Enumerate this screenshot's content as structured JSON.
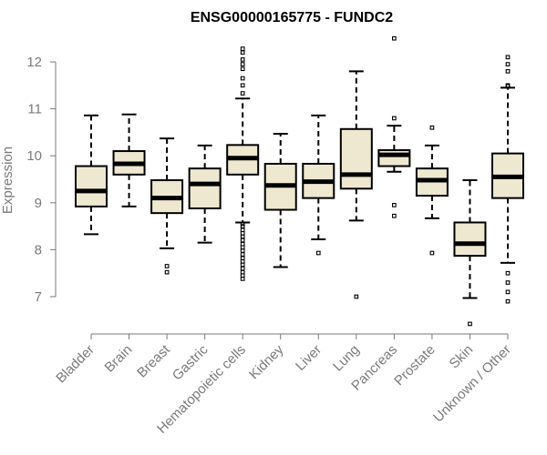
{
  "chart_data": {
    "type": "box",
    "title": "ENSG00000165775 - FUNDC2",
    "ylabel": "Expression",
    "xlabel": "",
    "ylim": [
      6.2,
      12.6
    ],
    "yticks": [
      7,
      8,
      9,
      10,
      11,
      12
    ],
    "colors": {
      "box_fill": "#eee8d0",
      "stroke": "#000000",
      "axis": "#7a7a7a"
    },
    "categories": [
      "Bladder",
      "Brain",
      "Breast",
      "Gastric",
      "Hematopoietic cells",
      "Kidney",
      "Liver",
      "Lung",
      "Pancreas",
      "Prostate",
      "Skin",
      "Unknown / Other"
    ],
    "boxes": [
      {
        "category": "Bladder",
        "whisker_low": 8.33,
        "q1": 8.92,
        "median": 9.25,
        "q3": 9.78,
        "whisker_high": 10.86,
        "outliers": []
      },
      {
        "category": "Brain",
        "whisker_low": 8.92,
        "q1": 9.6,
        "median": 9.83,
        "q3": 10.1,
        "whisker_high": 10.88,
        "outliers": []
      },
      {
        "category": "Breast",
        "whisker_low": 8.03,
        "q1": 8.78,
        "median": 9.1,
        "q3": 9.48,
        "whisker_high": 10.37,
        "outliers": [
          7.52,
          7.65
        ]
      },
      {
        "category": "Gastric",
        "whisker_low": 8.15,
        "q1": 8.88,
        "median": 9.4,
        "q3": 9.73,
        "whisker_high": 10.22,
        "outliers": []
      },
      {
        "category": "Hematopoietic cells",
        "whisker_low": 8.58,
        "q1": 9.6,
        "median": 9.95,
        "q3": 10.23,
        "whisker_high": 11.22,
        "outliers": [
          12.28,
          12.2,
          12.05,
          11.95,
          11.85,
          11.65,
          11.5,
          11.33,
          8.55,
          8.5,
          8.42,
          8.35,
          8.28,
          8.2,
          8.12,
          8.05,
          7.98,
          7.9,
          7.82,
          7.75,
          7.68,
          7.6,
          7.52,
          7.45,
          7.38
        ]
      },
      {
        "category": "Kidney",
        "whisker_low": 7.63,
        "q1": 8.85,
        "median": 9.37,
        "q3": 9.83,
        "whisker_high": 10.47,
        "outliers": []
      },
      {
        "category": "Liver",
        "whisker_low": 8.22,
        "q1": 9.1,
        "median": 9.45,
        "q3": 9.83,
        "whisker_high": 10.86,
        "outliers": [
          7.93
        ]
      },
      {
        "category": "Lung",
        "whisker_low": 8.62,
        "q1": 9.3,
        "median": 9.6,
        "q3": 10.57,
        "whisker_high": 11.8,
        "outliers": [
          7.0
        ]
      },
      {
        "category": "Pancreas",
        "whisker_low": 9.66,
        "q1": 9.78,
        "median": 10.02,
        "q3": 10.12,
        "whisker_high": 10.64,
        "outliers": [
          12.5,
          10.8,
          8.95,
          8.72
        ]
      },
      {
        "category": "Prostate",
        "whisker_low": 8.67,
        "q1": 9.15,
        "median": 9.48,
        "q3": 9.73,
        "whisker_high": 10.22,
        "outliers": [
          10.6,
          7.93
        ]
      },
      {
        "category": "Skin",
        "whisker_low": 6.97,
        "q1": 7.87,
        "median": 8.13,
        "q3": 8.58,
        "whisker_high": 9.48,
        "outliers": [
          6.42
        ]
      },
      {
        "category": "Unknown / Other",
        "whisker_low": 7.72,
        "q1": 9.1,
        "median": 9.55,
        "q3": 10.05,
        "whisker_high": 11.45,
        "outliers": [
          12.1,
          11.95,
          11.8,
          11.5,
          11.48,
          7.5,
          7.3,
          7.1,
          6.9
        ]
      }
    ]
  }
}
